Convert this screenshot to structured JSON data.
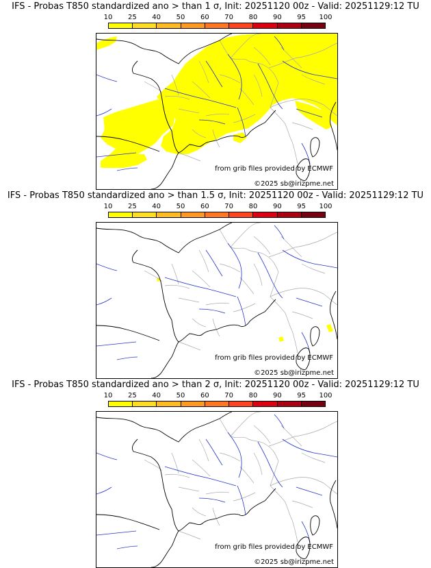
{
  "colorbar": {
    "ticks": [
      "10",
      "25",
      "40",
      "50",
      "60",
      "70",
      "80",
      "90",
      "95",
      "100"
    ],
    "colors": [
      "#ffff00",
      "#ffdd22",
      "#ffbb22",
      "#ff9922",
      "#ff7722",
      "#ff4422",
      "#dd0011",
      "#aa0011",
      "#770011"
    ]
  },
  "panels": [
    {
      "title": "IFS - Probas T850  standardized ano > than 1 σ, Init: 20251120 00z - Valid: 20251129:12 TU",
      "source": "from grib files provided by ECMWF",
      "copyright": "©2025 sb@irizpme.net",
      "shading": "wide"
    },
    {
      "title": "IFS - Probas T850  standardized ano > than 1.5 σ, Init: 20251120 00z - Valid: 20251129:12 TU",
      "source": "from grib files provided by ECMWF",
      "copyright": "©2025 sb@irizpme.net",
      "shading": "spots"
    },
    {
      "title": "IFS - Probas T850  standardized ano > than 2 σ, Init: 20251120 00z - Valid: 20251129:12 TU",
      "source": "from grib files provided by ECMWF",
      "copyright": "©2025 sb@irizpme.net",
      "shading": "none"
    }
  ],
  "map_colors": {
    "coast": "#000000",
    "borders": "#a9a9a9",
    "rivers": "#2233cc",
    "probability_fill": "#ffff00"
  }
}
